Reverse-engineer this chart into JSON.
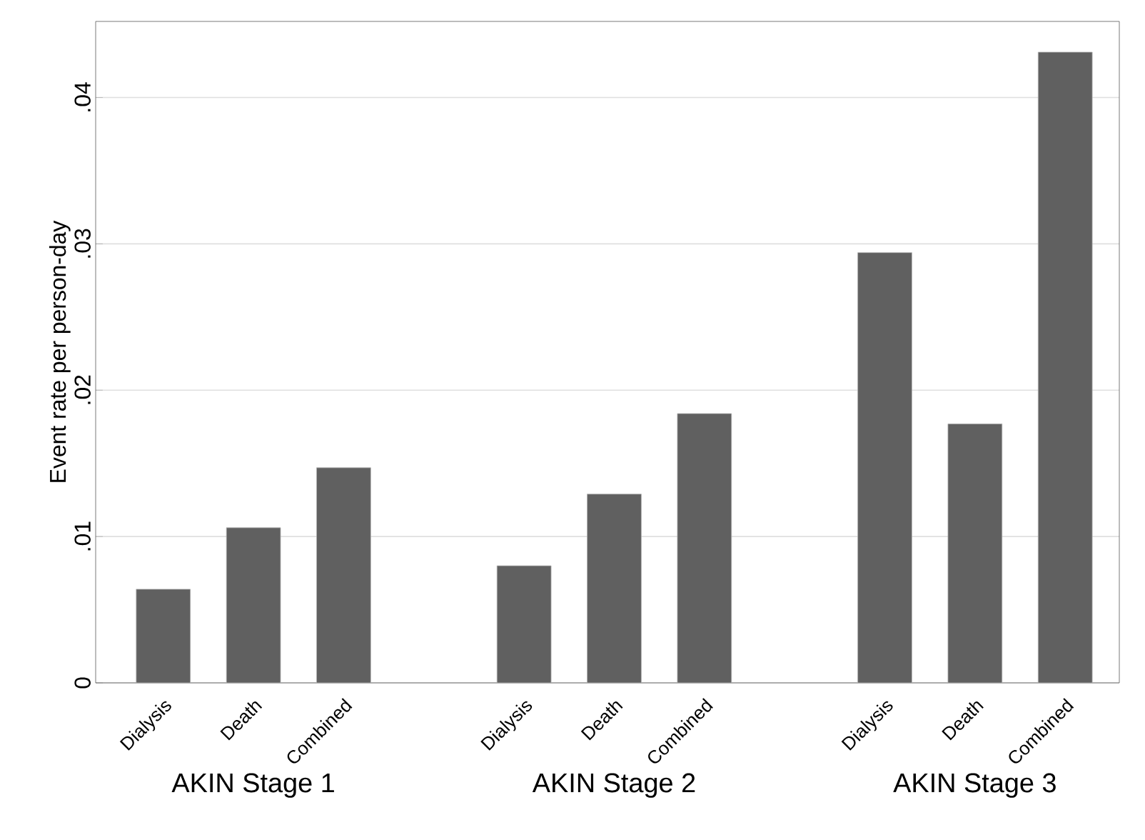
{
  "chart_data": {
    "type": "bar",
    "ylabel": "Event rate per person-day",
    "categories": [
      "Dialysis",
      "Death",
      "Combined",
      null,
      "Dialysis",
      "Death",
      "Combined",
      null,
      "Dialysis",
      "Death",
      "Combined"
    ],
    "values": [
      0.0064,
      0.0106,
      0.0147,
      null,
      0.008,
      0.0129,
      0.0184,
      null,
      0.0294,
      0.0177,
      0.0431
    ],
    "color": "#606060",
    "ylim": [
      0,
      0.0452
    ],
    "yticks": [
      0,
      {
        "value": 0.01,
        "label": ".01"
      },
      {
        "value": 0.02,
        "label": ".02"
      },
      {
        "value": 0.03,
        "label": ".03"
      },
      {
        "value": 0.04,
        "label": ".04"
      }
    ],
    "grid": "y",
    "annotations": [
      "AKIN Stage 1",
      "AKIN Stage 2",
      "AKIN Stage 3"
    ]
  }
}
